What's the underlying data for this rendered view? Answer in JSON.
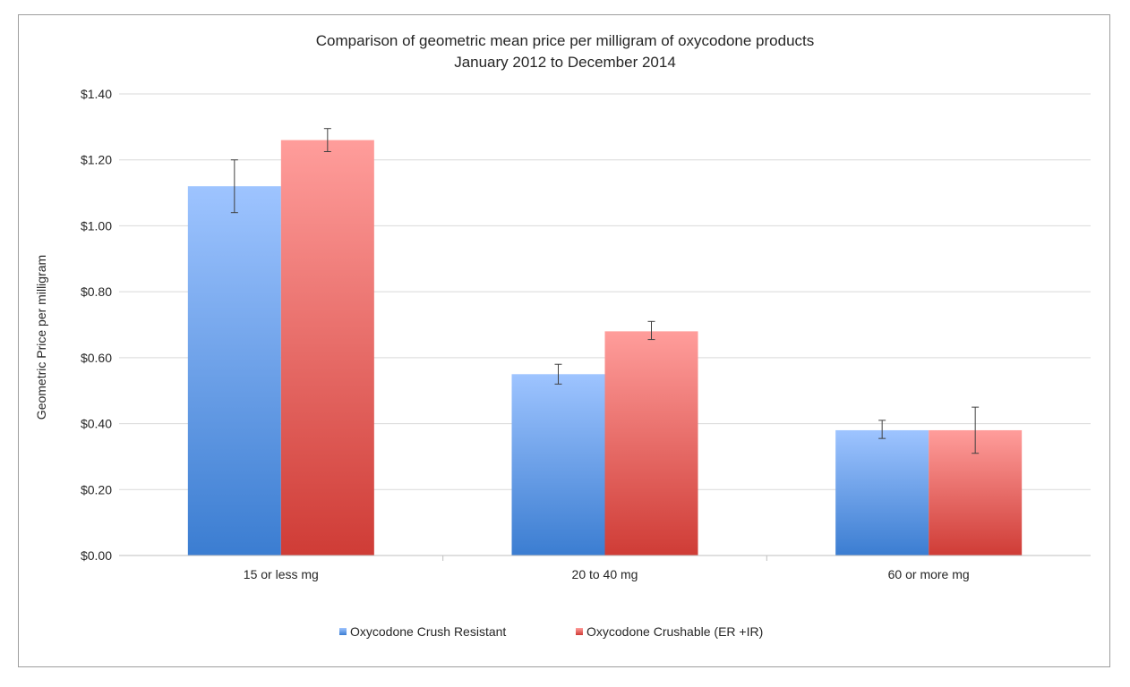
{
  "chart_data": {
    "type": "bar",
    "title": "Comparison of geometric mean price per milligram of oxycodone products",
    "subtitle": "January 2012 to December 2014",
    "xlabel": "",
    "ylabel": "Geometric Price per milligram",
    "categories": [
      "15 or less mg",
      "20 to 40 mg",
      "60 or more mg"
    ],
    "series": [
      {
        "name": "Oxycodone Crush Resistant",
        "values": [
          1.12,
          0.55,
          0.38
        ],
        "error_low": [
          1.04,
          0.52,
          0.355
        ],
        "error_high": [
          1.2,
          0.58,
          0.41
        ],
        "color_top": "#9ec4ff",
        "color_bottom": "#3b7dd1"
      },
      {
        "name": "Oxycodone Crushable (ER +IR)",
        "values": [
          1.26,
          0.68,
          0.38
        ],
        "error_low": [
          1.225,
          0.655,
          0.31
        ],
        "error_high": [
          1.295,
          0.71,
          0.45
        ],
        "color_top": "#ff9d9b",
        "color_bottom": "#cf3c36"
      }
    ],
    "yticks": [
      "$0.00",
      "$0.20",
      "$0.40",
      "$0.60",
      "$0.80",
      "$1.00",
      "$1.20",
      "$1.40"
    ],
    "ylim": [
      0,
      1.4
    ],
    "ytick_step": 0.2,
    "grid": true,
    "legend_position": "bottom"
  }
}
